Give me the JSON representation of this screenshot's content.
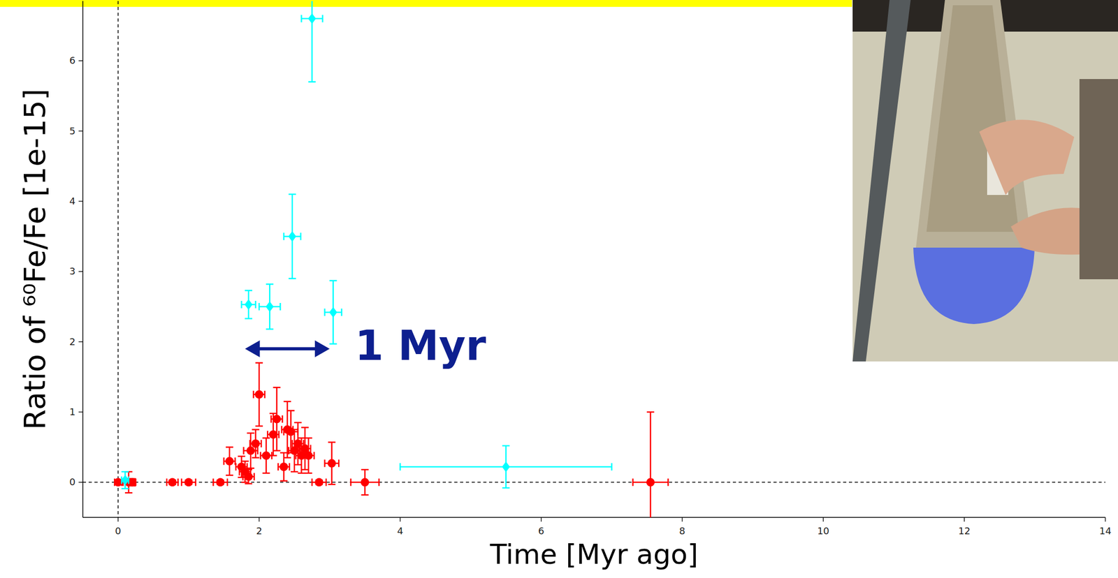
{
  "chart_data": {
    "type": "scatter",
    "x_label": "Time [Myr ago]",
    "y_label": "Ratio of ⁶⁰Fe/Fe [1e-15]",
    "xlim": [
      -0.5,
      14
    ],
    "ylim": [
      -0.5,
      6.85
    ],
    "xticks": [
      0,
      2,
      4,
      6,
      8,
      10,
      12,
      14
    ],
    "yticks": [
      0,
      1,
      2,
      3,
      4,
      5,
      6
    ],
    "reference_lines": {
      "x": [
        0
      ],
      "y": [
        0
      ]
    },
    "series": [
      {
        "color": "#ff0000",
        "marker": "circle",
        "x": [
          0.0,
          0.15,
          0.2,
          0.77,
          1.0,
          1.45,
          1.58,
          1.75,
          1.8,
          1.85,
          1.88,
          1.95,
          2.0,
          2.1,
          2.2,
          2.25,
          2.35,
          2.4,
          2.45,
          2.5,
          2.55,
          2.6,
          2.65,
          2.7,
          2.85,
          3.03,
          3.5,
          7.55
        ],
        "values": [
          0,
          0,
          0,
          0,
          0,
          0,
          0.3,
          0.22,
          0.15,
          0.08,
          0.45,
          0.55,
          1.25,
          0.38,
          0.68,
          0.9,
          0.22,
          0.75,
          0.72,
          0.45,
          0.55,
          0.38,
          0.48,
          0.38,
          0,
          0.27,
          0,
          0
        ],
        "y_errors": [
          0.03,
          0.15,
          0.05,
          0.03,
          0.03,
          0.03,
          0.2,
          0.15,
          0.15,
          0.1,
          0.25,
          0.2,
          0.45,
          0.25,
          0.3,
          0.45,
          0.2,
          0.4,
          0.3,
          0.3,
          0.3,
          0.25,
          0.3,
          0.25,
          0.03,
          0.3,
          0.18,
          1.0
        ],
        "x_errors": [
          0.05,
          0.08,
          0.05,
          0.08,
          0.1,
          0.1,
          0.08,
          0.08,
          0.08,
          0.08,
          0.1,
          0.08,
          0.08,
          0.08,
          0.08,
          0.08,
          0.08,
          0.08,
          0.1,
          0.08,
          0.08,
          0.08,
          0.08,
          0.08,
          0.1,
          0.1,
          0.2,
          0.25
        ]
      },
      {
        "color": "#00ffff",
        "marker": "diamond",
        "x": [
          0.1,
          1.85,
          2.15,
          2.47,
          2.75,
          3.05,
          5.5
        ],
        "values": [
          0.03,
          2.53,
          2.5,
          3.5,
          6.6,
          2.42,
          0.22
        ],
        "y_errors": [
          0.12,
          0.2,
          0.32,
          0.6,
          0.9,
          0.45,
          0.3
        ],
        "x_errors": [
          0.05,
          0.1,
          0.15,
          0.12,
          0.15,
          0.12,
          1.5
        ]
      }
    ],
    "annotations": [
      {
        "text": "1 Myr",
        "x": [
          1.8,
          3.0
        ],
        "y": 1.9
      }
    ]
  }
}
